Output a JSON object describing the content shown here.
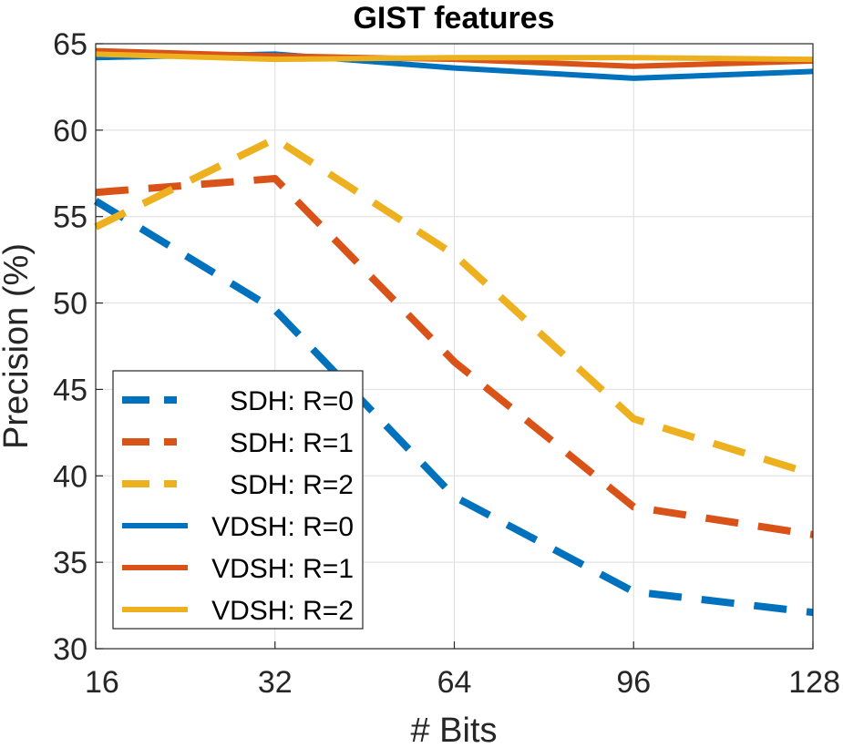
{
  "chart_data": {
    "type": "line",
    "title": "GIST features",
    "xlabel": "# Bits",
    "ylabel": "Precision (%)",
    "x": [
      16,
      32,
      64,
      96,
      128
    ],
    "x_tick_labels": [
      "16",
      "32",
      "64",
      "96",
      "128"
    ],
    "y_ticks": [
      30,
      35,
      40,
      45,
      50,
      55,
      60,
      65
    ],
    "ylim": [
      30,
      65
    ],
    "grid": true,
    "legend_position": "bottom-left",
    "series": [
      {
        "name": "SDH: R=0",
        "values": [
          55.9,
          49.6,
          38.8,
          33.3,
          32.1
        ],
        "style": "dashed",
        "color": "#0072bd"
      },
      {
        "name": "SDH: R=1",
        "values": [
          56.4,
          57.2,
          46.6,
          38.2,
          36.6
        ],
        "style": "dashed",
        "color": "#d95319"
      },
      {
        "name": "SDH: R=2",
        "values": [
          54.4,
          59.5,
          52.8,
          43.3,
          40.1
        ],
        "style": "dashed",
        "color": "#edb120"
      },
      {
        "name": "VDSH: R=0",
        "values": [
          64.2,
          64.4,
          63.6,
          63.0,
          63.4
        ],
        "style": "solid",
        "color": "#0072bd"
      },
      {
        "name": "VDSH: R=1",
        "values": [
          64.6,
          64.3,
          64.1,
          63.7,
          64.0
        ],
        "style": "solid",
        "color": "#d95319"
      },
      {
        "name": "VDSH: R=2",
        "values": [
          64.4,
          64.1,
          64.2,
          64.2,
          64.1
        ],
        "style": "solid",
        "color": "#edb120"
      }
    ]
  }
}
